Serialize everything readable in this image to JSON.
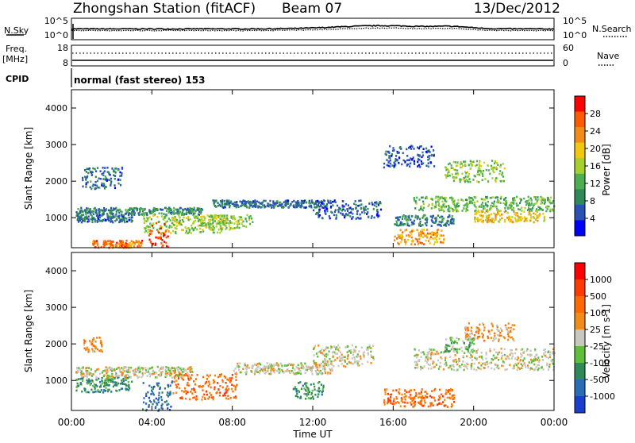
{
  "header": {
    "title": "Zhongshan Station (fitACF)",
    "beam": "Beam 07",
    "date": "13/Dec/2012"
  },
  "strip1": {
    "left_label": "N.Sky",
    "left_ticks": [
      "10^5",
      "10^0"
    ],
    "right_label": "N.Search",
    "right_ticks": [
      "10^5",
      "10^0"
    ]
  },
  "strip2": {
    "left_label": "Freq.",
    "left_unit": "[MHz]",
    "left_ticks": [
      "18",
      "8"
    ],
    "right_label": "Nave",
    "right_ticks": [
      "60",
      "0"
    ]
  },
  "strip3": {
    "left_label": "CPID",
    "mode_text": "normal (fast stereo) 153"
  },
  "chart_data": [
    {
      "type": "heatmap",
      "name": "power-panel",
      "ylabel": "Slant Range [km]",
      "ylim": [
        180,
        4500
      ],
      "y_ticks": [
        "1000",
        "2000",
        "3000",
        "4000"
      ],
      "y_tick_values": [
        1000,
        2000,
        3000,
        4000
      ],
      "x_ticks": [
        "00:00",
        "04:00",
        "08:00",
        "12:00",
        "16:00",
        "20:00",
        "00:00"
      ],
      "x_tick_hours": [
        0,
        4,
        8,
        12,
        16,
        20,
        24
      ],
      "colorbar": {
        "label": "Power [dB]",
        "ticks": [
          "4",
          "8",
          "12",
          "16",
          "20",
          "24",
          "28"
        ],
        "tick_values": [
          4,
          8,
          12,
          16,
          20,
          24,
          28
        ],
        "range": [
          0,
          32
        ],
        "colors": [
          "#0000ff",
          "#2a52b4",
          "#2e8b57",
          "#4caf50",
          "#a6d12c",
          "#f2c80f",
          "#f28c16",
          "#ff5a00",
          "#ff0000"
        ]
      },
      "blobs": [
        {
          "t0": 0.2,
          "t1": 6.5,
          "r0": 1100,
          "r1": 1300,
          "v": 9
        },
        {
          "t0": 0.2,
          "t1": 3.0,
          "r0": 900,
          "r1": 1100,
          "v": 7
        },
        {
          "t0": 3.5,
          "t1": 7.5,
          "r0": 600,
          "r1": 1100,
          "v": 15
        },
        {
          "t0": 3.8,
          "t1": 4.8,
          "r0": 200,
          "r1": 900,
          "v": 27
        },
        {
          "t0": 1.0,
          "t1": 3.5,
          "r0": 200,
          "r1": 400,
          "v": 25
        },
        {
          "t0": 6.0,
          "t1": 9.0,
          "r0": 700,
          "r1": 1100,
          "v": 15
        },
        {
          "t0": 7.0,
          "t1": 12.5,
          "r0": 1300,
          "r1": 1500,
          "v": 7
        },
        {
          "t0": 12.0,
          "t1": 15.5,
          "r0": 1000,
          "r1": 1500,
          "v": 6
        },
        {
          "t0": 16.0,
          "t1": 18.5,
          "r0": 300,
          "r1": 700,
          "v": 22
        },
        {
          "t0": 16.0,
          "t1": 19.0,
          "r0": 800,
          "r1": 1100,
          "v": 8
        },
        {
          "t0": 17.0,
          "t1": 24.0,
          "r0": 1200,
          "r1": 1600,
          "v": 13
        },
        {
          "t0": 18.5,
          "t1": 21.5,
          "r0": 2000,
          "r1": 2600,
          "v": 15
        },
        {
          "t0": 20.0,
          "t1": 23.5,
          "r0": 900,
          "r1": 1200,
          "v": 20
        },
        {
          "t0": 0.5,
          "t1": 2.5,
          "r0": 1800,
          "r1": 2400,
          "v": 7
        },
        {
          "t0": 15.5,
          "t1": 18.0,
          "r0": 2400,
          "r1": 3000,
          "v": 6
        }
      ]
    },
    {
      "type": "heatmap",
      "name": "velocity-panel",
      "ylabel": "Slant Range [km]",
      "xlabel": "Time UT",
      "ylim": [
        180,
        4500
      ],
      "y_ticks": [
        "1000",
        "2000",
        "3000",
        "4000"
      ],
      "y_tick_values": [
        1000,
        2000,
        3000,
        4000
      ],
      "x_ticks": [
        "00:00",
        "04:00",
        "08:00",
        "12:00",
        "16:00",
        "20:00",
        "00:00"
      ],
      "x_tick_hours": [
        0,
        4,
        8,
        12,
        16,
        20,
        24
      ],
      "colorbar": {
        "label": "Velocity [m s-1]",
        "ticks": [
          "1000",
          "500",
          "100",
          "25",
          "-25",
          "-100",
          "-500",
          "-1000"
        ],
        "colors": [
          "#1a3fd0",
          "#2a6db4",
          "#2e8b57",
          "#5fbf3a",
          "#c8c8c0",
          "#f28c16",
          "#ff6a00",
          "#ff3a00",
          "#ff0000"
        ]
      },
      "blobs": [
        {
          "t0": 0.2,
          "t1": 6.0,
          "r0": 1100,
          "r1": 1400,
          "v": 4
        },
        {
          "t0": 0.2,
          "t1": 3.0,
          "r0": 700,
          "r1": 1100,
          "v": 2
        },
        {
          "t0": 3.5,
          "t1": 5.0,
          "r0": 200,
          "r1": 1000,
          "v": 1
        },
        {
          "t0": 5.0,
          "t1": 8.2,
          "r0": 500,
          "r1": 1200,
          "v": 6
        },
        {
          "t0": 8.0,
          "t1": 13.0,
          "r0": 1200,
          "r1": 1500,
          "v": 4
        },
        {
          "t0": 12.0,
          "t1": 15.0,
          "r0": 1400,
          "r1": 2000,
          "v": 4
        },
        {
          "t0": 15.5,
          "t1": 19.0,
          "r0": 300,
          "r1": 800,
          "v": 6
        },
        {
          "t0": 17.0,
          "t1": 24.0,
          "r0": 1300,
          "r1": 1900,
          "v": 4
        },
        {
          "t0": 19.5,
          "t1": 22.0,
          "r0": 2100,
          "r1": 2600,
          "v": 5
        },
        {
          "t0": 18.5,
          "t1": 20.0,
          "r0": 1800,
          "r1": 2200,
          "v": 3
        },
        {
          "t0": 0.5,
          "t1": 1.5,
          "r0": 1800,
          "r1": 2200,
          "v": 5
        },
        {
          "t0": 11.0,
          "t1": 12.5,
          "r0": 500,
          "r1": 1000,
          "v": 2
        }
      ]
    }
  ]
}
